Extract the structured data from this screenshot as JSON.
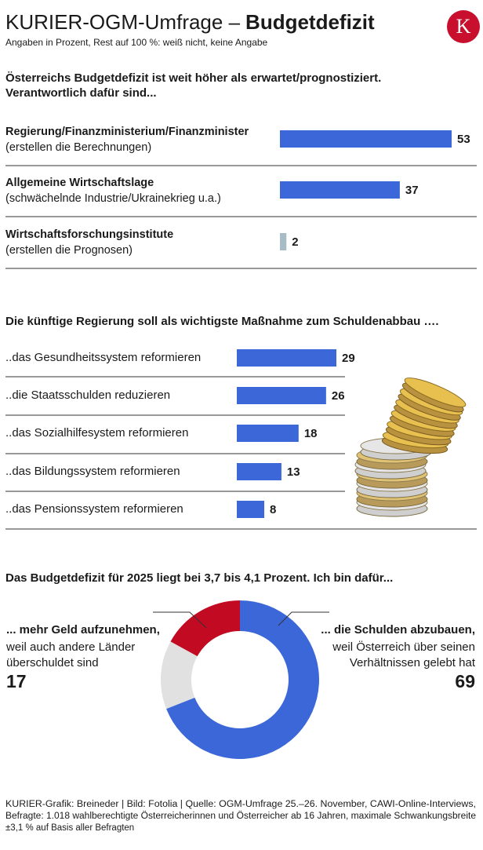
{
  "header": {
    "title_light": "KURIER-OGM-Umfrage –",
    "title_bold": "Budgetdefizit",
    "subtitle": "Angaben in Prozent, Rest auf 100 %: weiß nicht, keine Angabe",
    "logo": "K"
  },
  "chart_data": [
    {
      "type": "bar",
      "title": [
        "Österreichs Budgetdefizit ist weit höher als erwartet/prognostiziert.",
        "Verantwortlich dafür sind..."
      ],
      "categories": [
        "Regierung/Finanzministerium/Finanzminister",
        "Allgemeine Wirtschaftslage",
        "Wirtschaftsforschungsinstitute"
      ],
      "subcategories": [
        "(erstellen die Berechnungen)",
        "(schwächelnde Industrie/Ukrainekrieg u.a.)",
        "(erstellen die Prognosen)"
      ],
      "values": [
        53,
        37,
        2
      ],
      "colors": [
        "#3b67d8",
        "#3b67d8",
        "#a7bcc6"
      ]
    },
    {
      "type": "bar",
      "title": "Die künftige Regierung soll als wichtigste Maßnahme  zum Schuldenabbau ….",
      "categories": [
        "..das Gesundheitssystem reformieren",
        "..die Staatsschulden reduzieren",
        "..das Sozialhilfesystem reformieren",
        "..das Bildungssystem reformieren",
        "..das Pensionssystem reformieren"
      ],
      "values": [
        29,
        26,
        18,
        13,
        8
      ],
      "color": "#3b67d8"
    },
    {
      "type": "pie",
      "title": "Das Budgetdefizit für 2025 liegt bei 3,7 bis 4,1 Prozent. Ich bin dafür...",
      "categories": [
        "... die Schulden abzubauen,",
        null,
        "... mehr Geld aufzunehmen,"
      ],
      "descriptions": [
        [
          "weil Österreich über seinen",
          "Verhältnissen gelebt hat"
        ],
        null,
        [
          "weil auch andere Länder",
          "überschuldet sind"
        ]
      ],
      "values": [
        69,
        14,
        17
      ],
      "colors": [
        "#3b67d8",
        "#e1e1e1",
        "#c20a22"
      ]
    }
  ],
  "footer": [
    "KURIER-Grafik: Breineder | Bild: Fotolia | Quelle: OGM-Umfrage 25.–26. November, CAWI-Online-Interviews,",
    "Befragte: 1.018 wahlberechtigte Österreicherinnen und Österreicher ab 16 Jahren, maximale Schwankungsbreite",
    "±3,1 % auf Basis aller Befragten"
  ]
}
